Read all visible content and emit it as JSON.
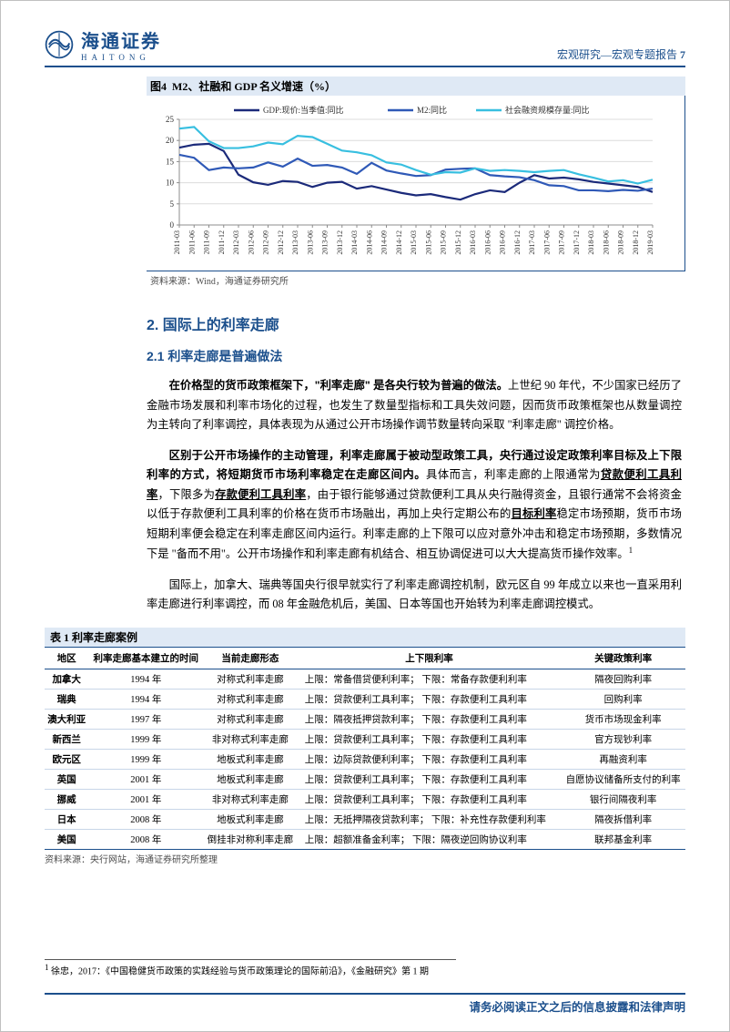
{
  "header": {
    "logo_cn": "海通证券",
    "logo_en": "HAITONG",
    "right_text": "宏观研究—宏观专题报告",
    "page_num": "7"
  },
  "chart": {
    "type": "line",
    "title_prefix": "图4",
    "title": "M2、社融和 GDP 名义增速（%）",
    "source": "资料来源：Wind，海通证券研究所",
    "y_axis": {
      "ylim": [
        0,
        25
      ],
      "ytick_step": 5,
      "label_fontsize": 9
    },
    "x_categories": [
      "2011-03",
      "2011-06",
      "2011-09",
      "2011-12",
      "2012-03",
      "2012-06",
      "2012-09",
      "2012-12",
      "2013-03",
      "2013-06",
      "2013-09",
      "2013-12",
      "2014-03",
      "2014-06",
      "2014-09",
      "2014-12",
      "2015-03",
      "2015-06",
      "2015-09",
      "2015-12",
      "2016-03",
      "2016-06",
      "2016-09",
      "2016-12",
      "2017-03",
      "2017-06",
      "2017-09",
      "2017-12",
      "2018-03",
      "2018-06",
      "2018-09",
      "2018-12",
      "2019-03"
    ],
    "series": [
      {
        "name": "GDP:现价:当季值:同比",
        "color": "#1b2a7a",
        "line_width": 2.2,
        "values": [
          18.3,
          19.0,
          19.2,
          17.5,
          11.9,
          10.1,
          9.5,
          10.4,
          10.2,
          9.0,
          10.0,
          10.2,
          8.6,
          9.2,
          8.4,
          7.6,
          7.0,
          7.3,
          6.6,
          6.0,
          7.3,
          8.2,
          7.8,
          10.0,
          11.8,
          11.0,
          11.2,
          10.8,
          10.2,
          9.8,
          9.4,
          9.0,
          7.8
        ]
      },
      {
        "name": "M2:同比",
        "color": "#2f59b7",
        "line_width": 2.2,
        "values": [
          16.6,
          15.9,
          13.0,
          13.6,
          13.4,
          13.6,
          14.8,
          13.8,
          15.7,
          14.0,
          14.2,
          13.6,
          12.1,
          14.7,
          12.9,
          12.2,
          11.6,
          11.8,
          13.1,
          13.3,
          13.4,
          11.8,
          11.5,
          11.3,
          10.6,
          9.4,
          9.2,
          8.2,
          8.2,
          8.0,
          8.3,
          8.1,
          8.6
        ]
      },
      {
        "name": "社会融资规模存量:同比",
        "color": "#38bfe0",
        "line_width": 2.2,
        "values": [
          22.8,
          23.2,
          19.8,
          18.2,
          18.2,
          18.6,
          19.5,
          19.1,
          21.1,
          20.8,
          19.2,
          17.6,
          17.2,
          16.5,
          14.8,
          14.3,
          13.0,
          11.9,
          12.5,
          12.4,
          13.4,
          12.8,
          13.0,
          12.8,
          12.5,
          12.8,
          13.0,
          12.0,
          11.2,
          10.3,
          10.6,
          9.8,
          10.7
        ]
      }
    ],
    "legend": {
      "position": "top-center",
      "fontsize": 9,
      "markers": [
        "line",
        "line",
        "line"
      ]
    },
    "background_color": "#ffffff",
    "grid_color": "#dcdcdc",
    "axis_color": "#8c8c8c",
    "tick_fontsize": 8
  },
  "section": {
    "h2": "2. 国际上的利率走廊",
    "h3": "2.1 利率走廊是普遍做法"
  },
  "paras": [
    {
      "bold": "在价格型的货币政策框架下，\"利率走廊\" 是各央行较为普遍的做法。",
      "rest": "上世纪 90 年代，不少国家已经历了金融市场发展和利率市场化的过程，也发生了数量型指标和工具失效问题，因而货币政策框架也从数量调控为主转向了利率调控，具体表现为从通过公开市场操作调节数量转向采取 \"利率走廊\" 调控价格。"
    },
    {
      "bold": "区别于公开市场操作的主动管理，利率走廊属于被动型政策工具，央行通过设定政策利率目标及上下限利率的方式，将短期货币市场利率稳定在走廊区间内。",
      "rest": "具体而言，利率走廊的上限通常为",
      "u1": "贷款便利工具利率",
      "mid1": "，下限多为",
      "u2": "存款便利工具利率",
      "mid2": "，由于银行能够通过贷款便利工具从央行融得资金，且银行通常不会将资金以低于存款便利工具利率的价格在货币市场融出，再加上央行定期公布的",
      "u3": "目标利率",
      "mid3": "稳定市场预期，货币市场短期利率便会稳定在利率走廊区间内运行。利率走廊的上下限可以应对意外冲击和稳定市场预期，多数情况下是 \"备而不用\"。公开市场操作和利率走廊有机结合、相互协调促进可以大大提高货币操作效率。",
      "sup": "1"
    },
    {
      "bold": "",
      "rest": "国际上，加拿大、瑞典等国央行很早就实行了利率走廊调控机制，欧元区自 99 年成立以来也一直采用利率走廊进行利率调控，而 08 年金融危机后，美国、日本等国也开始转为利率走廊调控模式。"
    }
  ],
  "table": {
    "title_prefix": "表 1",
    "title": "利率走廊案例",
    "headers": [
      "地区",
      "利率走廊基本建立的时间",
      "当前走廊形态",
      "上下限利率",
      "关键政策利率"
    ],
    "col_align": [
      "center",
      "center",
      "center",
      "left",
      "center"
    ],
    "header_bg": "#ffffff",
    "rows": [
      [
        "加拿大",
        "1994 年",
        "对称式利率走廊",
        "上限：常备借贷便利利率；  下限：常备存款便利利率",
        "隔夜回购利率"
      ],
      [
        "瑞典",
        "1994 年",
        "对称式利率走廊",
        "上限：贷款便利工具利率；  下限：存款便利工具利率",
        "回购利率"
      ],
      [
        "澳大利亚",
        "1997 年",
        "对称式利率走廊",
        "上限：隔夜抵押贷款利率；  下限：存款便利工具利率",
        "货币市场现金利率"
      ],
      [
        "新西兰",
        "1999 年",
        "非对称式利率走廊",
        "上限：贷款便利工具利率；  下限：存款便利工具利率",
        "官方现钞利率"
      ],
      [
        "欧元区",
        "1999 年",
        "地板式利率走廊",
        "上限：边际贷款便利利率；  下限：存款便利工具利率",
        "再融资利率"
      ],
      [
        "英国",
        "2001 年",
        "地板式利率走廊",
        "上限：贷款便利工具利率；  下限：存款便利工具利率",
        "自愿协议储备所支付的利率"
      ],
      [
        "挪威",
        "2001 年",
        "非对称式利率走廊",
        "上限：贷款便利工具利率；  下限：存款便利工具利率",
        "银行间隔夜利率"
      ],
      [
        "日本",
        "2008 年",
        "地板式利率走廊",
        "上限：无抵押隔夜贷款利率；  下限：补充性存款便利利率",
        "隔夜拆借利率"
      ],
      [
        "美国",
        "2008 年",
        "倒挂非对称利率走廊",
        "上限：超额准备金利率；  下限：隔夜逆回购协议利率",
        "联邦基金利率"
      ]
    ],
    "source": "资料来源：央行网站，海通证券研究所整理"
  },
  "footnote": {
    "num": "1",
    "text": " 徐忠，2017：《中国稳健货币政策的实践经验与货币政策理论的国际前沿》，《金融研究》第 1 期"
  },
  "footer": "请务必阅读正文之后的信息披露和法律声明"
}
